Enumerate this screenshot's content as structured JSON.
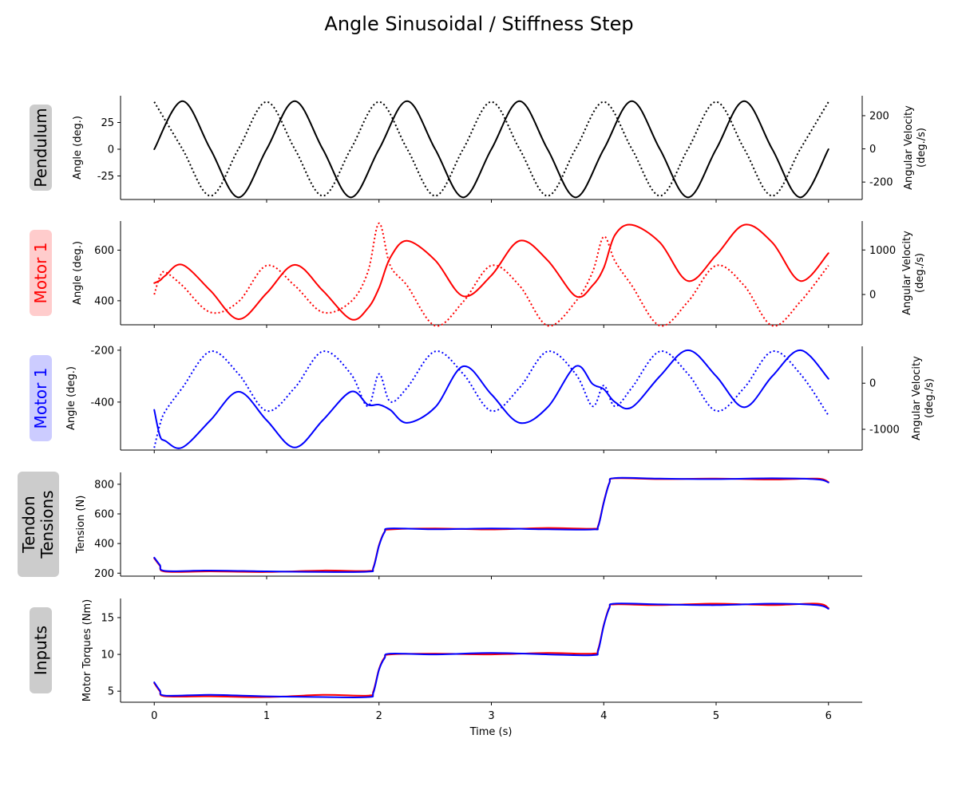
{
  "title": "Angle Sinusoidal / Stiffness Step",
  "xlabel": "Time (s)",
  "chart_data": [
    {
      "type": "line",
      "panel_label": "Pendulum",
      "label_color": "#000000",
      "label_bg": "#cccccc",
      "ylabel": "Angle (deg.)",
      "y2label_lines": [
        "Angular Velocity",
        "(deg./s)"
      ],
      "ylim": [
        -47,
        50
      ],
      "y2lim": [
        -305,
        320
      ],
      "yticks": [
        -25,
        0,
        25
      ],
      "y2ticks": [
        -200,
        0,
        200
      ],
      "color": "#000000",
      "x": [
        0,
        0.25,
        0.5,
        0.75,
        1.0,
        1.25,
        1.5,
        1.75,
        2.0,
        2.25,
        2.5,
        2.75,
        3.0,
        3.25,
        3.5,
        3.75,
        4.0,
        4.25,
        4.5,
        4.75,
        5.0,
        5.25,
        5.5,
        5.75,
        6.0
      ],
      "series": [
        {
          "axis": "left",
          "style": "solid",
          "values": [
            0,
            45,
            0,
            -45,
            0,
            45,
            0,
            -45,
            0,
            45,
            0,
            -45,
            0,
            45,
            0,
            -45,
            0,
            45,
            0,
            -45,
            0,
            45,
            0,
            -45,
            0
          ]
        },
        {
          "axis": "right",
          "style": "dotted",
          "values": [
            283,
            0,
            -283,
            0,
            283,
            0,
            -283,
            0,
            283,
            0,
            -283,
            0,
            283,
            0,
            -283,
            0,
            283,
            0,
            -283,
            0,
            283,
            0,
            -283,
            0,
            283
          ]
        }
      ]
    },
    {
      "type": "line",
      "panel_label": "Motor 1",
      "label_color": "#ff0000",
      "label_bg": "#ffcccc",
      "ylabel": "Angle (deg.)",
      "y2label_lines": [
        "Angular Velocity",
        "(deg./s)"
      ],
      "ylim": [
        305,
        715
      ],
      "y2lim": [
        -680,
        1650
      ],
      "yticks": [
        400,
        600
      ],
      "y2ticks": [
        0,
        1000
      ],
      "color": "#ff0000",
      "x": [
        0,
        0.05,
        0.1,
        0.25,
        0.5,
        0.75,
        1.0,
        1.25,
        1.5,
        1.75,
        1.9,
        2.0,
        2.1,
        2.25,
        2.5,
        2.75,
        3.0,
        3.25,
        3.5,
        3.75,
        3.9,
        4.0,
        4.1,
        4.25,
        4.5,
        4.75,
        5.0,
        5.25,
        5.5,
        5.75,
        6.0
      ],
      "series": [
        {
          "axis": "left",
          "style": "solid",
          "values": [
            470,
            480,
            500,
            542,
            440,
            327,
            430,
            542,
            440,
            327,
            370,
            450,
            570,
            637,
            560,
            418,
            500,
            637,
            560,
            418,
            460,
            530,
            660,
            700,
            630,
            478,
            580,
            700,
            630,
            478,
            588
          ]
        },
        {
          "axis": "right",
          "style": "dotted",
          "values": [
            0,
            400,
            500,
            200,
            -400,
            -160,
            650,
            200,
            -400,
            -160,
            500,
            1600,
            650,
            200,
            -700,
            -160,
            650,
            200,
            -700,
            -160,
            500,
            1300,
            750,
            200,
            -700,
            -160,
            650,
            200,
            -700,
            -160,
            650
          ]
        }
      ]
    },
    {
      "type": "line",
      "panel_label": "Motor 1",
      "label_color": "#0000ff",
      "label_bg": "#ccccff",
      "ylabel": "Angle (deg.)",
      "y2label_lines": [
        "Angular Velocity",
        "(deg./s)"
      ],
      "ylim": [
        -585,
        -185
      ],
      "y2lim": [
        -1450,
        800
      ],
      "yticks": [
        -400,
        -200
      ],
      "y2ticks": [
        -1000,
        0
      ],
      "color": "#0000ff",
      "x": [
        0,
        0.05,
        0.1,
        0.25,
        0.5,
        0.75,
        1.0,
        1.25,
        1.5,
        1.75,
        1.9,
        2.0,
        2.1,
        2.25,
        2.5,
        2.75,
        3.0,
        3.25,
        3.5,
        3.75,
        3.9,
        4.0,
        4.1,
        4.25,
        4.5,
        4.75,
        5.0,
        5.25,
        5.5,
        5.75,
        6.0
      ],
      "series": [
        {
          "axis": "left",
          "style": "solid",
          "values": [
            -430,
            -530,
            -550,
            -575,
            -470,
            -360,
            -470,
            -575,
            -470,
            -360,
            -410,
            -410,
            -430,
            -480,
            -420,
            -262,
            -370,
            -480,
            -420,
            -262,
            -330,
            -350,
            -400,
            -420,
            -300,
            -200,
            -300,
            -420,
            -300,
            -200,
            -310
          ]
        },
        {
          "axis": "right",
          "style": "dotted",
          "values": [
            -1400,
            -900,
            -600,
            -100,
            690,
            200,
            -600,
            -100,
            690,
            200,
            -500,
            200,
            -400,
            -100,
            690,
            200,
            -600,
            -100,
            690,
            200,
            -500,
            -50,
            -500,
            -100,
            690,
            200,
            -600,
            -100,
            690,
            200,
            -700
          ]
        }
      ]
    },
    {
      "type": "line",
      "panel_label": "Tendon\nTensions",
      "label_color": "#000000",
      "label_bg": "#cccccc",
      "ylabel": "Tension (N)",
      "ylim": [
        180,
        880
      ],
      "yticks": [
        200,
        400,
        600,
        800
      ],
      "x": [
        0,
        0.05,
        0.1,
        0.5,
        1.0,
        1.5,
        1.9,
        1.95,
        2.0,
        2.05,
        2.1,
        2.5,
        3.0,
        3.5,
        3.9,
        3.95,
        4.0,
        4.05,
        4.1,
        4.5,
        5.0,
        5.5,
        5.9,
        6.0
      ],
      "series": [
        {
          "axis": "left",
          "style": "solid",
          "color": "#ff0000",
          "values": [
            300,
            250,
            210,
            212,
            208,
            218,
            215,
            240,
            390,
            480,
            495,
            502,
            495,
            505,
            500,
            520,
            680,
            810,
            840,
            835,
            838,
            832,
            838,
            815
          ]
        },
        {
          "axis": "left",
          "style": "solid",
          "color": "#0000ff",
          "values": [
            305,
            255,
            215,
            218,
            212,
            208,
            210,
            235,
            385,
            478,
            502,
            496,
            502,
            496,
            495,
            515,
            675,
            808,
            842,
            838,
            835,
            840,
            833,
            812
          ]
        }
      ]
    },
    {
      "type": "line",
      "panel_label": "Inputs",
      "label_color": "#000000",
      "label_bg": "#cccccc",
      "ylabel": "Motor Torques (Nm)",
      "ylim": [
        3.5,
        17.6
      ],
      "yticks": [
        5,
        10,
        15
      ],
      "x": [
        0,
        0.05,
        0.1,
        0.5,
        1.0,
        1.5,
        1.9,
        1.95,
        2.0,
        2.05,
        2.1,
        2.5,
        3.0,
        3.5,
        3.9,
        3.95,
        4.0,
        4.05,
        4.1,
        4.5,
        5.0,
        5.5,
        5.9,
        6.0
      ],
      "series": [
        {
          "axis": "left",
          "style": "solid",
          "color": "#ff0000",
          "values": [
            6.1,
            5.0,
            4.3,
            4.3,
            4.2,
            4.5,
            4.4,
            5.0,
            8.0,
            9.6,
            10.0,
            10.1,
            10.0,
            10.2,
            10.1,
            10.7,
            14.0,
            16.4,
            16.8,
            16.7,
            16.9,
            16.7,
            16.9,
            16.3
          ]
        },
        {
          "axis": "left",
          "style": "solid",
          "color": "#0000ff",
          "values": [
            6.2,
            5.1,
            4.4,
            4.5,
            4.3,
            4.2,
            4.2,
            4.8,
            7.9,
            9.5,
            10.1,
            10.0,
            10.2,
            10.0,
            9.9,
            10.5,
            13.9,
            16.3,
            16.9,
            16.8,
            16.7,
            16.9,
            16.7,
            16.2
          ]
        }
      ]
    }
  ],
  "xaxis": {
    "xlim": [
      -0.3,
      6.3
    ],
    "xticks": [
      0,
      1,
      2,
      3,
      4,
      5,
      6
    ]
  }
}
